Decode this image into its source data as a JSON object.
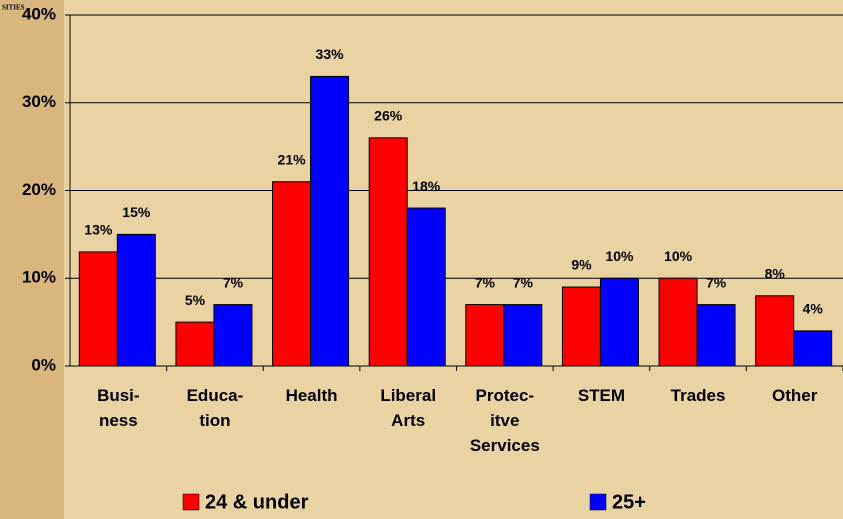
{
  "logo_text": "SITIES",
  "chart_data": {
    "type": "bar",
    "categories": [
      "Busi-\nness",
      "Educa-\ntion",
      "Health",
      "Liberal\nArts",
      "Protec-\nitve\nServices",
      "STEM",
      "Trades",
      "Other"
    ],
    "series": [
      {
        "name": "24 & under",
        "color": "#ff0000",
        "values": [
          13,
          5,
          21,
          26,
          7,
          9,
          10,
          8
        ],
        "value_labels": [
          "13%",
          "5%",
          "21%",
          "26%",
          "7%",
          "9%",
          "10%",
          "8%"
        ]
      },
      {
        "name": "25+",
        "color": "#0000ff",
        "values": [
          15,
          7,
          33,
          18,
          7,
          10,
          7,
          4
        ],
        "value_labels": [
          "15%",
          "7%",
          "33%",
          "18%",
          "7%",
          "10%",
          "7%",
          "4%"
        ]
      }
    ],
    "ylim": [
      0,
      40
    ],
    "yticks": [
      {
        "value": 0,
        "label": "0%"
      },
      {
        "value": 10,
        "label": "10%"
      },
      {
        "value": 20,
        "label": "20%"
      },
      {
        "value": 30,
        "label": "30%"
      },
      {
        "value": 40,
        "label": "40%"
      }
    ],
    "grid": true
  }
}
